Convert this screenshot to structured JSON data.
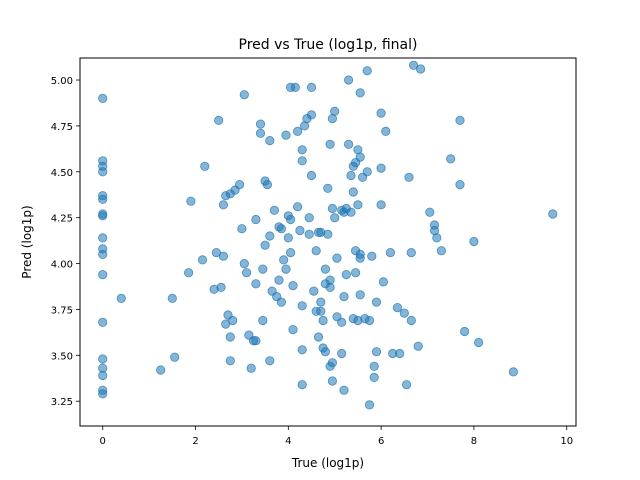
{
  "chart_data": {
    "type": "scatter",
    "title": "Pred vs True (log1p, final)",
    "xlabel": "True (log1p)",
    "ylabel": "Pred (log1p)",
    "xlim": [
      -0.49,
      10.2
    ],
    "ylim": [
      3.115,
      5.12
    ],
    "xticks": [
      0,
      2,
      4,
      6,
      8,
      10
    ],
    "yticks": [
      3.25,
      3.5,
      3.75,
      4.0,
      4.25,
      4.5,
      4.75,
      5.0
    ],
    "xtick_labels": [
      "0",
      "2",
      "4",
      "6",
      "8",
      "10"
    ],
    "ytick_labels": [
      "3.25",
      "3.50",
      "3.75",
      "4.00",
      "4.25",
      "4.50",
      "4.75",
      "5.00"
    ],
    "grid": false,
    "marker_color": "#1f77b4",
    "marker_alpha": 0.55,
    "points": [
      [
        0.0,
        4.9
      ],
      [
        0.0,
        4.56
      ],
      [
        0.0,
        4.53
      ],
      [
        0.0,
        4.5
      ],
      [
        0.0,
        4.37
      ],
      [
        0.0,
        4.35
      ],
      [
        0.0,
        4.27
      ],
      [
        0.0,
        4.26
      ],
      [
        0.0,
        4.14
      ],
      [
        0.0,
        4.08
      ],
      [
        0.0,
        4.05
      ],
      [
        0.0,
        3.94
      ],
      [
        0.0,
        3.68
      ],
      [
        0.0,
        3.48
      ],
      [
        0.0,
        3.43
      ],
      [
        0.0,
        3.39
      ],
      [
        0.0,
        3.31
      ],
      [
        0.0,
        3.29
      ],
      [
        0.4,
        3.81
      ],
      [
        1.25,
        3.42
      ],
      [
        1.5,
        3.81
      ],
      [
        1.55,
        3.49
      ],
      [
        1.85,
        3.95
      ],
      [
        1.9,
        4.34
      ],
      [
        2.15,
        4.02
      ],
      [
        2.2,
        4.53
      ],
      [
        2.4,
        3.86
      ],
      [
        2.45,
        4.06
      ],
      [
        2.5,
        4.78
      ],
      [
        2.55,
        3.87
      ],
      [
        2.6,
        4.04
      ],
      [
        2.6,
        4.32
      ],
      [
        2.65,
        4.37
      ],
      [
        2.65,
        3.67
      ],
      [
        2.7,
        3.72
      ],
      [
        2.75,
        4.38
      ],
      [
        2.75,
        3.47
      ],
      [
        2.75,
        3.6
      ],
      [
        2.8,
        3.69
      ],
      [
        2.85,
        4.4
      ],
      [
        2.95,
        4.43
      ],
      [
        3.0,
        4.19
      ],
      [
        3.05,
        4.92
      ],
      [
        3.05,
        4.0
      ],
      [
        3.1,
        3.95
      ],
      [
        3.15,
        3.61
      ],
      [
        3.2,
        3.43
      ],
      [
        3.25,
        3.58
      ],
      [
        3.3,
        3.58
      ],
      [
        3.3,
        4.24
      ],
      [
        3.3,
        3.89
      ],
      [
        3.4,
        4.71
      ],
      [
        3.4,
        4.76
      ],
      [
        3.45,
        3.97
      ],
      [
        3.45,
        3.69
      ],
      [
        3.5,
        4.45
      ],
      [
        3.5,
        4.1
      ],
      [
        3.55,
        4.43
      ],
      [
        3.6,
        4.67
      ],
      [
        3.6,
        3.47
      ],
      [
        3.6,
        4.15
      ],
      [
        3.65,
        3.85
      ],
      [
        3.7,
        4.29
      ],
      [
        3.75,
        3.82
      ],
      [
        3.8,
        3.91
      ],
      [
        3.8,
        4.2
      ],
      [
        3.85,
        4.19
      ],
      [
        3.85,
        3.79
      ],
      [
        3.9,
        4.02
      ],
      [
        3.95,
        4.7
      ],
      [
        3.95,
        3.97
      ],
      [
        4.0,
        4.26
      ],
      [
        4.0,
        4.14
      ],
      [
        4.05,
        4.96
      ],
      [
        4.05,
        4.24
      ],
      [
        4.05,
        4.06
      ],
      [
        4.1,
        3.64
      ],
      [
        4.1,
        3.88
      ],
      [
        4.15,
        4.96
      ],
      [
        4.2,
        4.31
      ],
      [
        4.2,
        4.72
      ],
      [
        4.25,
        4.18
      ],
      [
        4.3,
        4.62
      ],
      [
        4.3,
        4.56
      ],
      [
        4.3,
        3.77
      ],
      [
        4.3,
        3.53
      ],
      [
        4.3,
        3.34
      ],
      [
        4.35,
        4.75
      ],
      [
        4.4,
        4.79
      ],
      [
        4.45,
        4.25
      ],
      [
        4.45,
        4.16
      ],
      [
        4.5,
        4.96
      ],
      [
        4.5,
        4.81
      ],
      [
        4.5,
        4.48
      ],
      [
        4.55,
        3.85
      ],
      [
        4.6,
        4.07
      ],
      [
        4.6,
        3.74
      ],
      [
        4.65,
        4.17
      ],
      [
        4.65,
        3.6
      ],
      [
        4.7,
        4.17
      ],
      [
        4.7,
        3.79
      ],
      [
        4.7,
        3.74
      ],
      [
        4.75,
        3.69
      ],
      [
        4.75,
        3.54
      ],
      [
        4.8,
        3.52
      ],
      [
        4.8,
        3.97
      ],
      [
        4.8,
        3.89
      ],
      [
        4.85,
        4.41
      ],
      [
        4.85,
        4.16
      ],
      [
        4.9,
        4.65
      ],
      [
        4.9,
        3.87
      ],
      [
        4.9,
        3.91
      ],
      [
        4.9,
        3.44
      ],
      [
        4.95,
        4.79
      ],
      [
        4.95,
        4.3
      ],
      [
        4.95,
        3.46
      ],
      [
        4.95,
        3.36
      ],
      [
        5.0,
        4.83
      ],
      [
        5.0,
        4.25
      ],
      [
        5.05,
        3.71
      ],
      [
        5.05,
        4.03
      ],
      [
        5.15,
        3.51
      ],
      [
        5.15,
        3.68
      ],
      [
        5.15,
        4.29
      ],
      [
        5.2,
        4.28
      ],
      [
        5.2,
        3.31
      ],
      [
        5.2,
        3.82
      ],
      [
        5.25,
        4.3
      ],
      [
        5.25,
        3.94
      ],
      [
        5.3,
        4.65
      ],
      [
        5.3,
        5.0
      ],
      [
        5.35,
        4.48
      ],
      [
        5.35,
        4.28
      ],
      [
        5.4,
        4.53
      ],
      [
        5.4,
        4.39
      ],
      [
        5.4,
        3.7
      ],
      [
        5.45,
        4.55
      ],
      [
        5.45,
        3.95
      ],
      [
        5.45,
        4.07
      ],
      [
        5.5,
        4.62
      ],
      [
        5.5,
        4.32
      ],
      [
        5.5,
        3.69
      ],
      [
        5.55,
        4.93
      ],
      [
        5.55,
        4.58
      ],
      [
        5.55,
        4.05
      ],
      [
        5.55,
        4.03
      ],
      [
        5.55,
        3.83
      ],
      [
        5.6,
        4.47
      ],
      [
        5.65,
        3.7
      ],
      [
        5.7,
        5.05
      ],
      [
        5.7,
        4.5
      ],
      [
        5.75,
        3.69
      ],
      [
        5.75,
        3.23
      ],
      [
        5.8,
        4.04
      ],
      [
        5.85,
        3.44
      ],
      [
        5.85,
        3.38
      ],
      [
        5.9,
        3.79
      ],
      [
        5.9,
        3.52
      ],
      [
        6.0,
        4.82
      ],
      [
        6.0,
        4.52
      ],
      [
        6.0,
        4.32
      ],
      [
        6.05,
        3.9
      ],
      [
        6.1,
        4.72
      ],
      [
        6.2,
        4.06
      ],
      [
        6.25,
        3.51
      ],
      [
        6.35,
        3.76
      ],
      [
        6.4,
        3.51
      ],
      [
        6.5,
        3.73
      ],
      [
        6.55,
        3.34
      ],
      [
        6.6,
        4.47
      ],
      [
        6.65,
        3.69
      ],
      [
        6.65,
        4.06
      ],
      [
        6.7,
        5.08
      ],
      [
        6.8,
        3.55
      ],
      [
        6.85,
        5.06
      ],
      [
        7.05,
        4.28
      ],
      [
        7.15,
        4.21
      ],
      [
        7.15,
        4.18
      ],
      [
        7.2,
        4.14
      ],
      [
        7.3,
        4.07
      ],
      [
        7.5,
        4.57
      ],
      [
        7.7,
        4.78
      ],
      [
        7.7,
        4.43
      ],
      [
        7.8,
        3.63
      ],
      [
        8.0,
        4.12
      ],
      [
        8.1,
        3.57
      ],
      [
        8.85,
        3.41
      ],
      [
        9.7,
        4.27
      ]
    ]
  }
}
